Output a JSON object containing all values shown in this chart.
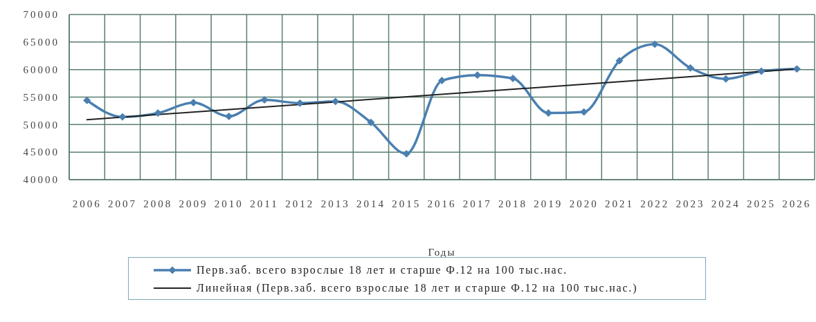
{
  "chart_data": {
    "type": "line",
    "xlabel": "Годы",
    "x": [
      2006,
      2007,
      2008,
      2009,
      2010,
      2011,
      2012,
      2013,
      2014,
      2015,
      2016,
      2017,
      2018,
      2019,
      2020,
      2021,
      2022,
      2023,
      2024,
      2025,
      2026
    ],
    "xlim": [
      2005.5,
      2026.5
    ],
    "xticks": [
      2006,
      2007,
      2008,
      2009,
      2010,
      2011,
      2012,
      2013,
      2014,
      2015,
      2016,
      2017,
      2018,
      2019,
      2020,
      2021,
      2022,
      2023,
      2024,
      2025,
      2026
    ],
    "ylim": [
      40000,
      70000
    ],
    "yticks": [
      40000,
      45000,
      50000,
      55000,
      60000,
      65000,
      70000
    ],
    "grid": true,
    "legend": "bottom",
    "marker": "diamond",
    "series": [
      {
        "name": "Перв.заб. всего взрослые 18 лет и старше Ф.12 на 100 тыс.нас.",
        "color": "#4a7fb0",
        "values": [
          54400,
          51400,
          52100,
          54000,
          51500,
          54500,
          53900,
          54200,
          50400,
          44700,
          58000,
          59000,
          58400,
          52100,
          52300,
          61600,
          64600,
          60300,
          58300,
          59700,
          60100
        ]
      },
      {
        "name": "Линейная (Перв.заб. всего взрослые 18 лет и старше Ф.12 на 100 тыс.нас.)",
        "type": "line",
        "color": "#222222",
        "marker": "none",
        "x": [
          2006,
          2026
        ],
        "values": [
          50900,
          60100
        ]
      }
    ]
  }
}
